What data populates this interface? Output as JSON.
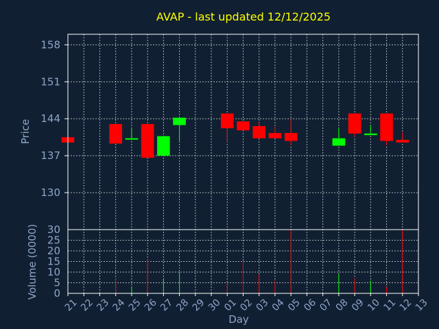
{
  "chart_data": {
    "type": "candlestick",
    "title": "AVAP - last updated 12/12/2025",
    "xlabel": "Day",
    "ylabel": "Price",
    "volume_label": "Volume (0000)",
    "ylim": [
      123,
      160
    ],
    "vol_ylim": [
      0,
      30
    ],
    "price_ticks": [
      "158",
      "151",
      "144",
      "137",
      "130"
    ],
    "price_tick_values": [
      158,
      151,
      144,
      137,
      130
    ],
    "volume_ticks": [
      "30",
      "25",
      "20",
      "15",
      "10",
      "5",
      "0"
    ],
    "volume_tick_values": [
      30,
      25,
      20,
      15,
      10,
      5,
      0
    ],
    "x_labels": [
      "21",
      "22",
      "23",
      "24",
      "25",
      "26",
      "27",
      "28",
      "29",
      "30",
      "01",
      "02",
      "03",
      "04",
      "05",
      "06",
      "07",
      "08",
      "09",
      "10",
      "11",
      "12",
      "13"
    ],
    "grid": true,
    "colors": {
      "up": "#00ff00",
      "down": "#ff0000",
      "background": "#102032",
      "title": "#ffff00",
      "text": "#8fa5c8"
    },
    "candles": [
      {
        "day": "21",
        "open": 140.5,
        "high": 140.5,
        "low": 139.5,
        "close": 139.5,
        "volume": 0.5
      },
      {
        "day": "24",
        "open": 143.0,
        "high": 143.0,
        "low": 139.3,
        "close": 139.3,
        "volume": 7
      },
      {
        "day": "25",
        "open": 140.1,
        "high": 142.2,
        "low": 140.0,
        "close": 140.3,
        "volume": 3
      },
      {
        "day": "26",
        "open": 143.0,
        "high": 143.0,
        "low": 136.6,
        "close": 136.6,
        "volume": 16
      },
      {
        "day": "27",
        "open": 137.0,
        "high": 140.7,
        "low": 137.0,
        "close": 140.7,
        "volume": 7
      },
      {
        "day": "28",
        "open": 142.8,
        "high": 144.2,
        "low": 139.8,
        "close": 144.2,
        "volume": 10
      },
      {
        "day": "01",
        "open": 145.0,
        "high": 145.0,
        "low": 139.5,
        "close": 142.2,
        "volume": 5
      },
      {
        "day": "02",
        "open": 143.5,
        "high": 143.5,
        "low": 141.8,
        "close": 141.8,
        "volume": 15
      },
      {
        "day": "03",
        "open": 142.6,
        "high": 143.3,
        "low": 140.3,
        "close": 140.3,
        "volume": 9
      },
      {
        "day": "04",
        "open": 141.3,
        "high": 142.5,
        "low": 140.3,
        "close": 140.3,
        "volume": 6
      },
      {
        "day": "05",
        "open": 141.3,
        "high": 144.0,
        "low": 138.9,
        "close": 139.8,
        "volume": 30
      },
      {
        "day": "08",
        "open": 138.9,
        "high": 142.3,
        "low": 138.9,
        "close": 140.3,
        "volume": 9
      },
      {
        "day": "09",
        "open": 145.0,
        "high": 145.0,
        "low": 140.6,
        "close": 141.2,
        "volume": 7
      },
      {
        "day": "10",
        "open": 140.9,
        "high": 142.8,
        "low": 140.9,
        "close": 141.2,
        "volume": 6
      },
      {
        "day": "11",
        "open": 145.0,
        "high": 145.0,
        "low": 139.0,
        "close": 139.8,
        "volume": 3
      },
      {
        "day": "12",
        "open": 140.0,
        "high": 141.5,
        "low": 139.5,
        "close": 139.5,
        "volume": 30
      }
    ]
  }
}
